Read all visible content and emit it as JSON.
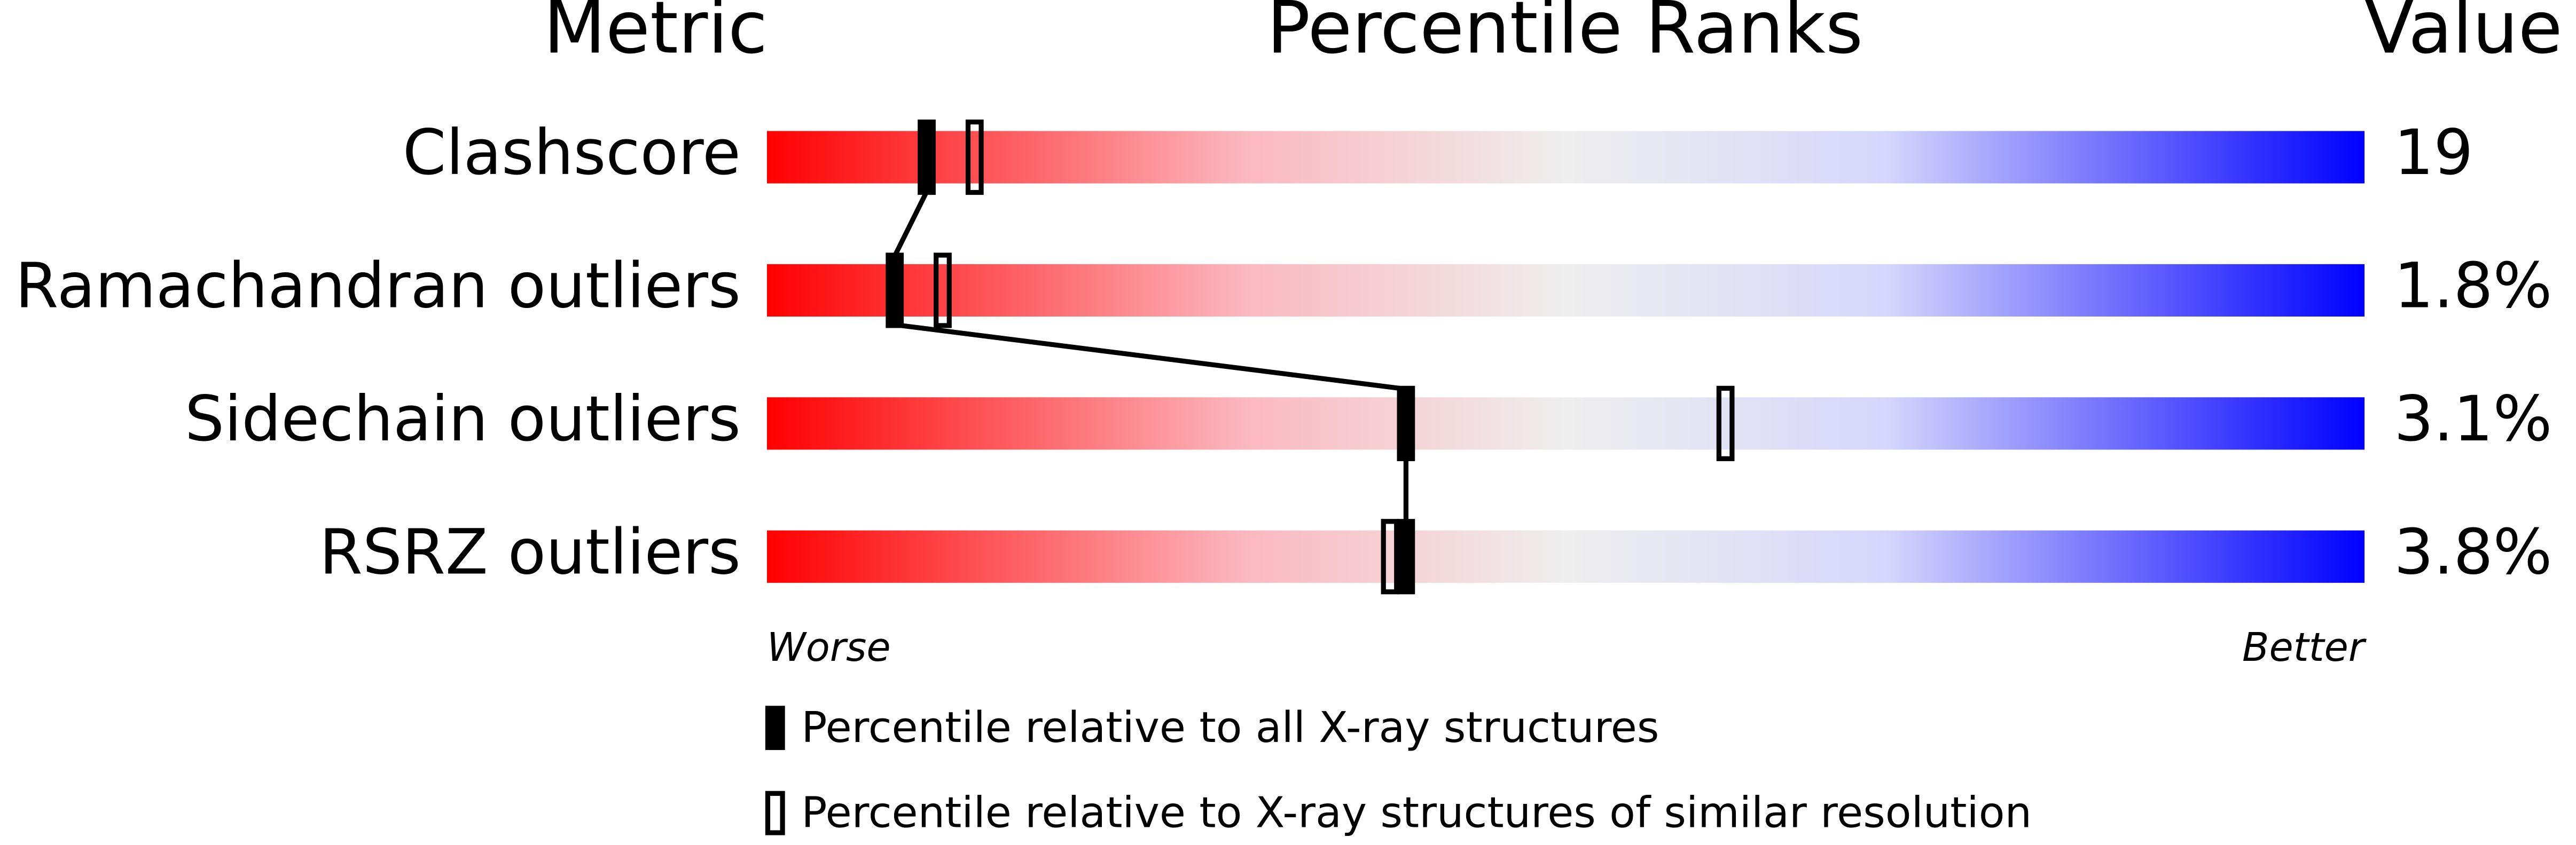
{
  "chart_data": {
    "type": "slider",
    "headers": [
      "Metric",
      "Percentile Ranks",
      "Value"
    ],
    "categories": [
      "Clashscore",
      "Ramachandran outliers",
      "Sidechain outliers",
      "RSRZ outliers"
    ],
    "value_labels": [
      "19",
      "1.8%",
      "3.1%",
      "3.8%"
    ],
    "xlim": [
      0,
      100
    ],
    "axis_labels": [
      "Worse",
      "Better"
    ],
    "series": [
      {
        "name": "Percentile relative to all X-ray structures",
        "style": "filled",
        "color": "#000000",
        "values": [
          10,
          8,
          40,
          40
        ]
      },
      {
        "name": "Percentile relative to X-ray structures of similar resolution",
        "style": "open",
        "color": "#000000",
        "values": [
          13,
          11,
          60,
          39
        ]
      }
    ]
  }
}
